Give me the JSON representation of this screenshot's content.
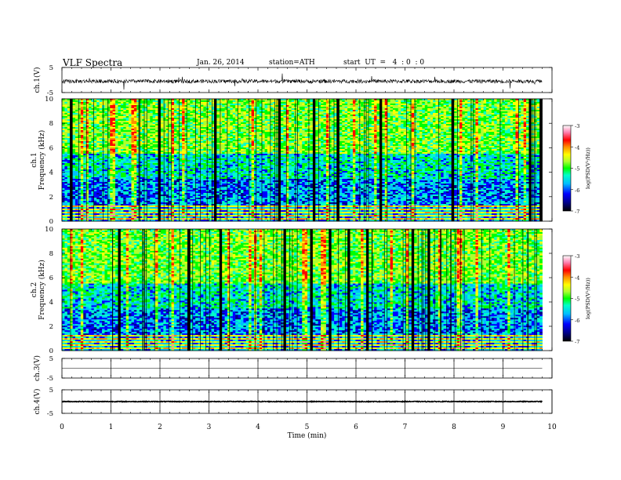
{
  "header": {
    "title": "VLF Spectra",
    "date": "Jan. 26, 2014",
    "station": "station=ATH",
    "start": "start  UT  =   4  : 0  : 0"
  },
  "chart_data": [
    {
      "type": "line",
      "panel": "ch1-waveform",
      "ylabel": "ch.1(V)",
      "ylim": [
        -5,
        5
      ],
      "yticks": [
        "5",
        "-5"
      ],
      "x_range": [
        0,
        10
      ],
      "data_extent_min": 9.8,
      "description_values": {
        "baseline_v": -0.5,
        "noise_amplitude_v": 1.5
      }
    },
    {
      "type": "heatmap",
      "panel": "ch1-spectrogram",
      "ylabel": "ch.1\nFrequency (kHz)",
      "ylim": [
        0,
        10
      ],
      "yticks": [
        "0",
        "2",
        "4",
        "6",
        "8",
        "10"
      ],
      "x_range": [
        0,
        10
      ],
      "data_extent_min": 9.8,
      "colorbar": {
        "label": "log(PSD(V²/Hz))",
        "range": [
          -7,
          -3
        ],
        "ticks": [
          "-3",
          "-4",
          "-5",
          "-6",
          "-7"
        ]
      }
    },
    {
      "type": "heatmap",
      "panel": "ch2-spectrogram",
      "ylabel": "ch.2\nFrequency (kHz)",
      "ylim": [
        0,
        10
      ],
      "yticks": [
        "0",
        "2",
        "4",
        "6",
        "8",
        "10"
      ],
      "x_range": [
        0,
        10
      ],
      "data_extent_min": 9.8,
      "colorbar": {
        "label": "log(PSD(V²/Hz))",
        "range": [
          -7,
          -3
        ],
        "ticks": [
          "-3",
          "-4",
          "-5",
          "-6",
          "-7"
        ]
      }
    },
    {
      "type": "line",
      "panel": "ch3-waveform",
      "ylabel": "ch.3(V)",
      "ylim": [
        -5,
        5
      ],
      "yticks": [
        "5",
        "-5"
      ],
      "x_range": [
        0,
        10
      ],
      "data_extent_min": 9.8,
      "description_values": {
        "baseline_v": 0,
        "noise_amplitude_v": 0.05
      }
    },
    {
      "type": "line",
      "panel": "ch4-waveform",
      "ylabel": "ch.4(V)",
      "ylim": [
        -5,
        5
      ],
      "yticks": [
        "5",
        "-5"
      ],
      "x_range": [
        0,
        10
      ],
      "data_extent_min": 9.8,
      "description_values": {
        "baseline_v": 0,
        "noise_amplitude_v": 0.3
      }
    }
  ],
  "x_axis": {
    "label": "Time  (min)",
    "ticks": [
      "0",
      "1",
      "2",
      "3",
      "4",
      "5",
      "6",
      "7",
      "8",
      "9",
      "10"
    ]
  },
  "colormap": [
    "#000000",
    "#00008b",
    "#0000ff",
    "#00bfff",
    "#00ffc8",
    "#00ff00",
    "#adff2f",
    "#ffff00",
    "#ff8c00",
    "#ff0000",
    "#ff80b0",
    "#ffffff"
  ]
}
